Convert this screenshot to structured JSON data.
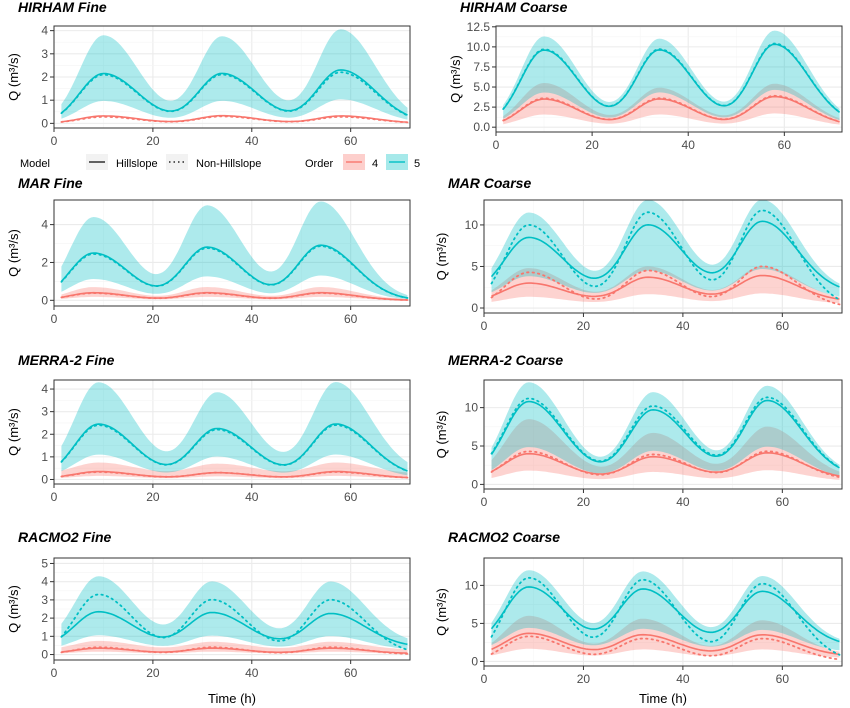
{
  "colors": {
    "order4": "#F8766D",
    "order5": "#00BFC4",
    "ribbon4": "#F8766D",
    "ribbon5": "#00BFC4",
    "panel_border": "#333333",
    "grid_major": "#EBEBEB",
    "grid_minor": "#F5F5F5"
  },
  "legend": {
    "model_title": "Model",
    "model_items": [
      "Hillslope",
      "Non-Hillslope"
    ],
    "order_title": "Order",
    "order_items": [
      "4",
      "5"
    ]
  },
  "chart_data": [
    {
      "type": "line",
      "title": "HIRHAM Fine",
      "xlabel": "",
      "ylabel": "Q (m³/s)",
      "xlim": [
        0,
        72
      ],
      "ylim": [
        -0.2,
        4.2
      ],
      "xticks": [
        0,
        20,
        40,
        60
      ],
      "yticks": [
        0,
        1,
        2,
        3,
        4
      ],
      "peaks_h": [
        10,
        34,
        58
      ],
      "series": [
        {
          "name": "4",
          "model": "Hillslope",
          "peaks": [
            0.32,
            0.33,
            0.32
          ],
          "base": 0.0,
          "band": [
            0.15,
            0.45
          ]
        },
        {
          "name": "4",
          "model": "Non-Hillslope",
          "peaks": [
            0.28,
            0.3,
            0.28
          ],
          "base": 0.0
        },
        {
          "name": "5",
          "model": "Hillslope",
          "peaks": [
            2.15,
            2.15,
            2.3
          ],
          "base": 0.0,
          "band": [
            3.8,
            3.75,
            4.05
          ]
        },
        {
          "name": "5",
          "model": "Non-Hillslope",
          "peaks": [
            2.1,
            2.1,
            2.2
          ],
          "base": 0.0
        }
      ]
    },
    {
      "type": "line",
      "title": "HIRHAM Coarse",
      "xlabel": "",
      "ylabel": "Q (m³/s)",
      "xlim": [
        0,
        72
      ],
      "ylim": [
        -0.6,
        12.6
      ],
      "xticks": [
        0,
        20,
        40,
        60
      ],
      "yticks": [
        0.0,
        2.5,
        5.0,
        7.5,
        10.0,
        12.5
      ],
      "peaks_h": [
        10,
        34,
        58
      ],
      "series": [
        {
          "name": "4",
          "model": "Hillslope",
          "peaks": [
            3.5,
            3.5,
            3.8
          ],
          "base": 0.1,
          "band": [
            5.5,
            4.9,
            5.4
          ]
        },
        {
          "name": "4",
          "model": "Non-Hillslope",
          "peaks": [
            3.6,
            3.6,
            3.9
          ],
          "base": 0.1
        },
        {
          "name": "5",
          "model": "Hillslope",
          "peaks": [
            9.6,
            9.6,
            10.3
          ],
          "base": 0.3,
          "band": [
            11.3,
            11.0,
            12.0
          ]
        },
        {
          "name": "5",
          "model": "Non-Hillslope",
          "peaks": [
            9.7,
            9.7,
            10.4
          ],
          "base": 0.3
        }
      ]
    },
    {
      "type": "line",
      "title": "MAR Fine",
      "xlabel": "",
      "ylabel": "Q (m³/s)",
      "xlim": [
        0,
        72
      ],
      "ylim": [
        -0.3,
        5.3
      ],
      "xticks": [
        0,
        20,
        40,
        60
      ],
      "yticks": [
        0,
        2,
        4
      ],
      "peaks_h": [
        8,
        31,
        54
      ],
      "series": [
        {
          "name": "4",
          "model": "Hillslope",
          "peaks": [
            0.4,
            0.4,
            0.4
          ],
          "base": 0.0,
          "band": [
            0.7,
            0.7,
            0.7
          ]
        },
        {
          "name": "4",
          "model": "Non-Hillslope",
          "peaks": [
            0.38,
            0.38,
            0.38
          ],
          "base": 0.0
        },
        {
          "name": "5",
          "model": "Hillslope",
          "peaks": [
            2.5,
            2.8,
            2.9
          ],
          "base": 0.0,
          "band": [
            4.4,
            5.0,
            5.2
          ]
        },
        {
          "name": "5",
          "model": "Non-Hillslope",
          "peaks": [
            2.45,
            2.75,
            2.85
          ],
          "base": 0.0
        }
      ]
    },
    {
      "type": "line",
      "title": "MAR Coarse",
      "xlabel": "",
      "ylabel": "Q (m³/s)",
      "xlim": [
        0,
        72
      ],
      "ylim": [
        -0.6,
        13.0
      ],
      "xticks": [
        0,
        20,
        40,
        60
      ],
      "yticks": [
        0,
        5,
        10
      ],
      "peaks_h": [
        9,
        33,
        56
      ],
      "series": [
        {
          "name": "4",
          "model": "Hillslope",
          "peaks": [
            3.0,
            3.7,
            3.9
          ],
          "base": 0.8,
          "band": [
            4.8,
            5.0,
            5.0
          ]
        },
        {
          "name": "4",
          "model": "Non-Hillslope",
          "peaks": [
            4.3,
            4.5,
            5.0
          ],
          "base": 0.0
        },
        {
          "name": "5",
          "model": "Hillslope",
          "peaks": [
            8.5,
            10.0,
            10.4
          ],
          "base": 1.8,
          "band": [
            11.5,
            13.0,
            13.0
          ]
        },
        {
          "name": "5",
          "model": "Non-Hillslope",
          "peaks": [
            10.0,
            11.5,
            11.7
          ],
          "base": 0.0
        }
      ]
    },
    {
      "type": "line",
      "title": "MERRA-2  Fine",
      "xlabel": "",
      "ylabel": "Q (m³/s)",
      "xlim": [
        0,
        72
      ],
      "ylim": [
        -0.2,
        4.4
      ],
      "xticks": [
        0,
        20,
        40,
        60
      ],
      "yticks": [
        0,
        1,
        2,
        3,
        4
      ],
      "peaks_h": [
        9,
        33,
        57
      ],
      "series": [
        {
          "name": "4",
          "model": "Hillslope",
          "peaks": [
            0.35,
            0.3,
            0.35
          ],
          "base": 0.05,
          "band": [
            0.75,
            0.7,
            0.75
          ]
        },
        {
          "name": "4",
          "model": "Non-Hillslope",
          "peaks": [
            0.33,
            0.3,
            0.33
          ],
          "base": 0.05
        },
        {
          "name": "5",
          "model": "Hillslope",
          "peaks": [
            2.45,
            2.25,
            2.45
          ],
          "base": 0.1,
          "band": [
            4.3,
            3.85,
            4.3
          ]
        },
        {
          "name": "5",
          "model": "Non-Hillslope",
          "peaks": [
            2.4,
            2.2,
            2.4
          ],
          "base": 0.1
        }
      ]
    },
    {
      "type": "line",
      "title": "MERRA-2 Coarse",
      "xlabel": "",
      "ylabel": "Q (m³/s)",
      "xlim": [
        0,
        72
      ],
      "ylim": [
        -0.6,
        13.6
      ],
      "xticks": [
        0,
        20,
        40,
        60
      ],
      "yticks": [
        0,
        5,
        10
      ],
      "peaks_h": [
        9,
        34,
        57
      ],
      "series": [
        {
          "name": "4",
          "model": "Hillslope",
          "peaks": [
            4.0,
            3.6,
            4.1
          ],
          "base": 0.7,
          "band": [
            8.5,
            6.7,
            7.5
          ]
        },
        {
          "name": "4",
          "model": "Non-Hillslope",
          "peaks": [
            4.3,
            3.9,
            4.3
          ],
          "base": 0.5
        },
        {
          "name": "5",
          "model": "Hillslope",
          "peaks": [
            10.8,
            9.7,
            10.9
          ],
          "base": 1.0,
          "band": [
            13.3,
            12.0,
            12.8
          ]
        },
        {
          "name": "5",
          "model": "Non-Hillslope",
          "peaks": [
            11.2,
            10.2,
            11.3
          ],
          "base": 1.0
        }
      ]
    },
    {
      "type": "line",
      "title": "RACMO2 Fine",
      "xlabel": "Time (h)",
      "ylabel": "Q (m³/s)",
      "xlim": [
        0,
        72
      ],
      "ylim": [
        -0.3,
        5.3
      ],
      "xticks": [
        0,
        20,
        40,
        60
      ],
      "yticks": [
        0,
        1,
        2,
        3,
        4,
        5
      ],
      "peaks_h": [
        9,
        32,
        56
      ],
      "series": [
        {
          "name": "4",
          "model": "Hillslope",
          "peaks": [
            0.35,
            0.35,
            0.35
          ],
          "base": 0.05,
          "band": [
            0.75,
            0.7,
            0.7
          ]
        },
        {
          "name": "4",
          "model": "Non-Hillslope",
          "peaks": [
            0.4,
            0.4,
            0.4
          ],
          "base": 0.0
        },
        {
          "name": "5",
          "model": "Hillslope",
          "peaks": [
            2.35,
            2.3,
            2.25
          ],
          "base": 0.4,
          "band": [
            4.3,
            4.0,
            4.0
          ]
        },
        {
          "name": "5",
          "model": "Non-Hillslope",
          "peaks": [
            3.3,
            3.0,
            3.0
          ],
          "base": 0.0
        }
      ]
    },
    {
      "type": "line",
      "title": "RACMO2 Coarse",
      "xlabel": "Time (h)",
      "ylabel": "Q (m³/s)",
      "xlim": [
        0,
        72
      ],
      "ylim": [
        -0.6,
        13.6
      ],
      "xticks": [
        0,
        20,
        40,
        60
      ],
      "yticks": [
        0,
        5,
        10
      ],
      "peaks_h": [
        9,
        32,
        56
      ],
      "series": [
        {
          "name": "4",
          "model": "Hillslope",
          "peaks": [
            3.7,
            3.5,
            3.5
          ],
          "base": 0.7,
          "band": [
            6.0,
            5.6,
            5.4
          ]
        },
        {
          "name": "4",
          "model": "Non-Hillslope",
          "peaks": [
            3.3,
            3.0,
            3.0
          ],
          "base": 0.0
        },
        {
          "name": "5",
          "model": "Hillslope",
          "peaks": [
            9.8,
            9.5,
            9.2
          ],
          "base": 2.0,
          "band": [
            12.0,
            11.8,
            11.2
          ]
        },
        {
          "name": "5",
          "model": "Non-Hillslope",
          "peaks": [
            11.0,
            10.7,
            10.2
          ],
          "base": 0.0
        }
      ]
    }
  ]
}
